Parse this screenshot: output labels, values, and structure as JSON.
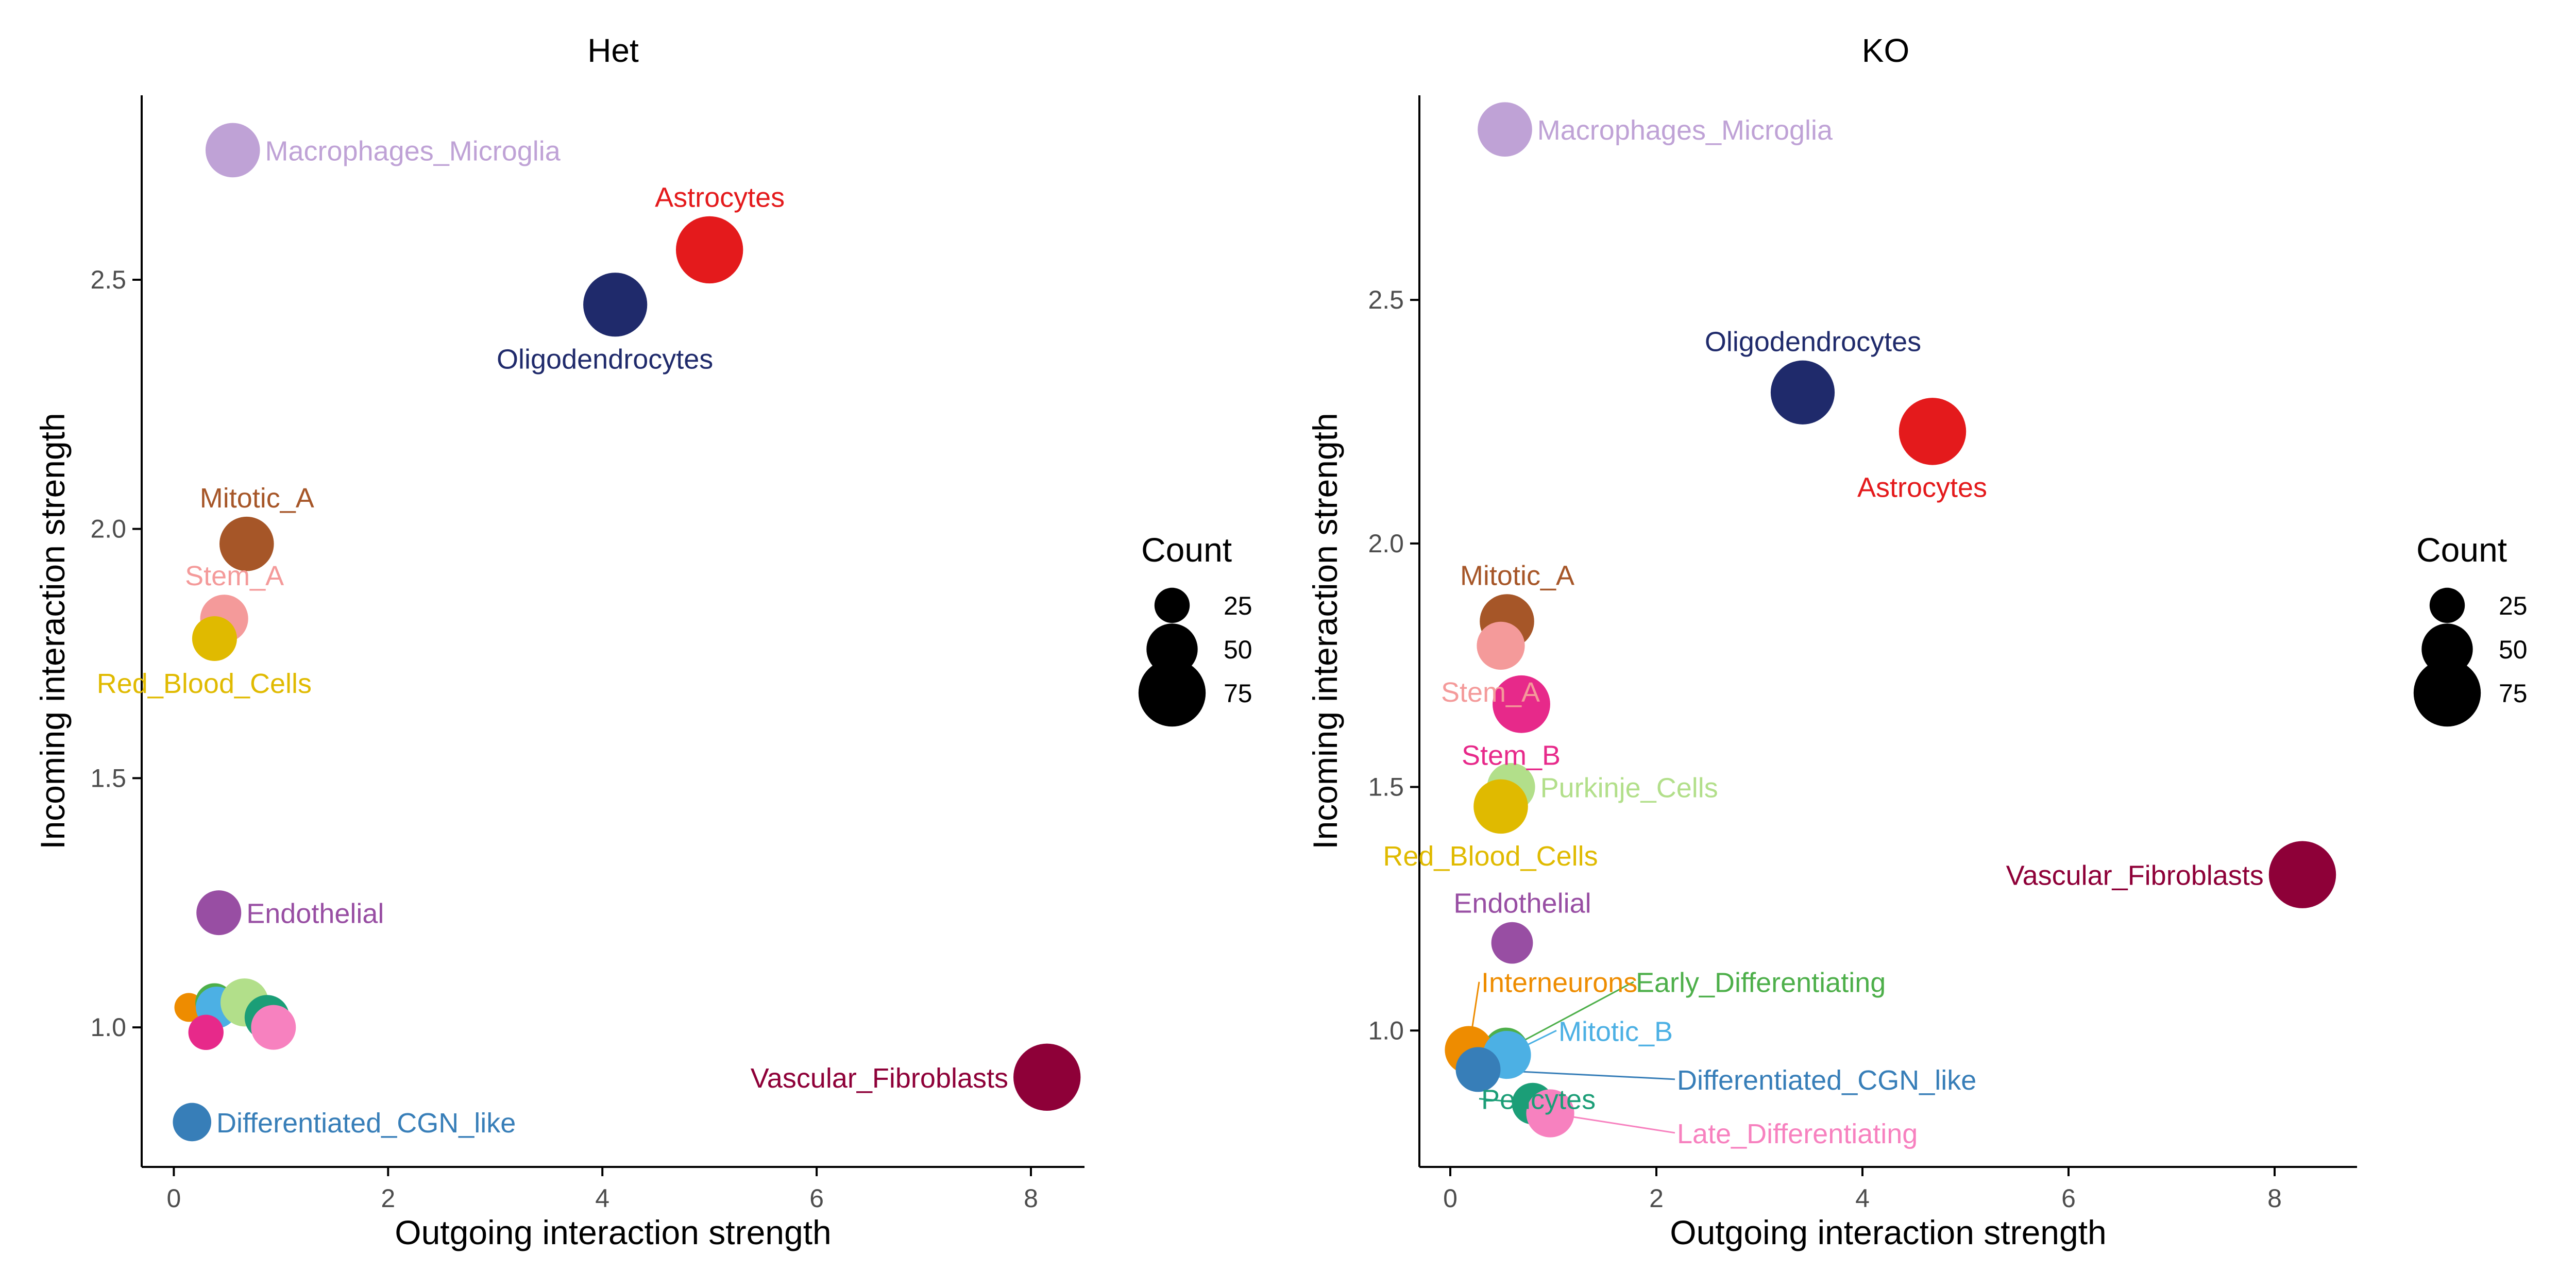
{
  "legend": {
    "title": "Count",
    "entries": [
      {
        "label": "25",
        "value": 25
      },
      {
        "label": "50",
        "value": 50
      },
      {
        "label": "75",
        "value": 75
      }
    ]
  },
  "chart_data": [
    {
      "type": "scatter",
      "title": "Het",
      "xlabel": "Outgoing interaction strength",
      "ylabel": "Incoming interaction strength",
      "xlim": [
        -0.3,
        8.5
      ],
      "ylim": [
        0.72,
        2.87
      ],
      "xticks": [
        0,
        2,
        4,
        6,
        8
      ],
      "yticks": [
        1.0,
        1.5,
        2.0,
        2.5
      ],
      "ytick_labels": [
        "1.0",
        "1.5",
        "2.0",
        "2.5"
      ],
      "points": [
        {
          "name": "Macrophages_Microglia",
          "x": 0.55,
          "y": 2.76,
          "count": 55,
          "color": "#BFA2D6",
          "label": "Macrophages_Microglia",
          "anchor": "right"
        },
        {
          "name": "Astrocytes",
          "x": 5.0,
          "y": 2.56,
          "count": 75,
          "color": "#E41A1C",
          "label": "Astrocytes",
          "anchor": "above"
        },
        {
          "name": "Oligodendrocytes",
          "x": 4.12,
          "y": 2.45,
          "count": 70,
          "color": "#1F2A6B",
          "label": "Oligodendrocytes",
          "anchor": "below"
        },
        {
          "name": "Mitotic_A",
          "x": 0.68,
          "y": 1.97,
          "count": 55,
          "color": "#A65628",
          "label": "Mitotic_A",
          "anchor": "above"
        },
        {
          "name": "Stem_A",
          "x": 0.47,
          "y": 1.82,
          "count": 45,
          "color": "#F49A9A",
          "label": "Stem_A",
          "anchor": "above"
        },
        {
          "name": "Red_Blood_Cells",
          "x": 0.38,
          "y": 1.78,
          "count": 40,
          "color": "#E0BA00",
          "label": "Red_Blood_Cells",
          "anchor": "below"
        },
        {
          "name": "Endothelial",
          "x": 0.42,
          "y": 1.23,
          "count": 40,
          "color": "#984EA3",
          "label": "Endothelial",
          "anchor": "right"
        },
        {
          "name": "Interneurons",
          "x": 0.14,
          "y": 1.04,
          "count": 15,
          "color": "#EE8C00",
          "label": "",
          "anchor": "none"
        },
        {
          "name": "Early_Differentiating",
          "x": 0.38,
          "y": 1.05,
          "count": 30,
          "color": "#4DAF4A",
          "label": "",
          "anchor": "none"
        },
        {
          "name": "Mitotic_B",
          "x": 0.4,
          "y": 1.04,
          "count": 35,
          "color": "#4CB0E4",
          "label": "",
          "anchor": "none"
        },
        {
          "name": "Purkinje_Cells",
          "x": 0.66,
          "y": 1.05,
          "count": 45,
          "color": "#B2DF8A",
          "label": "",
          "anchor": "none"
        },
        {
          "name": "Pericytes",
          "x": 0.87,
          "y": 1.02,
          "count": 40,
          "color": "#1B9E77",
          "label": "",
          "anchor": "none"
        },
        {
          "name": "Stem_B",
          "x": 0.3,
          "y": 0.99,
          "count": 25,
          "color": "#E7298A",
          "label": "",
          "anchor": "none"
        },
        {
          "name": "Late_Differentiating",
          "x": 0.93,
          "y": 1.0,
          "count": 40,
          "color": "#F781BF",
          "label": "",
          "anchor": "none"
        },
        {
          "name": "Differentiated_CGN_like",
          "x": 0.17,
          "y": 0.81,
          "count": 30,
          "color": "#377EB8",
          "label": "Differentiated_CGN_like",
          "anchor": "right"
        },
        {
          "name": "Vascular_Fibroblasts",
          "x": 8.15,
          "y": 0.9,
          "count": 75,
          "color": "#8E0038",
          "label": "Vascular_Fibroblasts",
          "anchor": "left"
        }
      ]
    },
    {
      "type": "scatter",
      "title": "KO",
      "xlabel": "Outgoing interaction strength",
      "ylabel": "Incoming interaction strength",
      "xlim": [
        -0.3,
        8.8
      ],
      "ylim": [
        0.72,
        2.92
      ],
      "xticks": [
        0,
        2,
        4,
        6,
        8
      ],
      "yticks": [
        1.0,
        1.5,
        2.0,
        2.5
      ],
      "ytick_labels": [
        "1.0",
        "1.5",
        "2.0",
        "2.5"
      ],
      "points": [
        {
          "name": "Macrophages_Microglia",
          "x": 0.53,
          "y": 2.85,
          "count": 55,
          "color": "#BFA2D6",
          "label": "Macrophages_Microglia",
          "anchor": "right"
        },
        {
          "name": "Oligodendrocytes",
          "x": 3.42,
          "y": 2.31,
          "count": 70,
          "color": "#1F2A6B",
          "label": "Oligodendrocytes",
          "anchor": "above"
        },
        {
          "name": "Astrocytes",
          "x": 4.68,
          "y": 2.23,
          "count": 75,
          "color": "#E41A1C",
          "label": "Astrocytes",
          "anchor": "below"
        },
        {
          "name": "Mitotic_A",
          "x": 0.55,
          "y": 1.84,
          "count": 55,
          "color": "#A65628",
          "label": "Mitotic_A",
          "anchor": "above"
        },
        {
          "name": "Stem_A",
          "x": 0.49,
          "y": 1.79,
          "count": 45,
          "color": "#F49A9A",
          "label": "Stem_A",
          "anchor": "below"
        },
        {
          "name": "Stem_B",
          "x": 0.69,
          "y": 1.67,
          "count": 60,
          "color": "#E7298A",
          "label": "Stem_B",
          "anchor": "below"
        },
        {
          "name": "Purkinje_Cells",
          "x": 0.59,
          "y": 1.5,
          "count": 45,
          "color": "#B2DF8A",
          "label": "Purkinje_Cells",
          "anchor": "right"
        },
        {
          "name": "Red_Blood_Cells",
          "x": 0.49,
          "y": 1.46,
          "count": 55,
          "color": "#E0BA00",
          "label": "Red_Blood_Cells",
          "anchor": "below"
        },
        {
          "name": "Vascular_Fibroblasts",
          "x": 8.27,
          "y": 1.32,
          "count": 75,
          "color": "#8E0038",
          "label": "Vascular_Fibroblasts",
          "anchor": "left"
        },
        {
          "name": "Endothelial",
          "x": 0.6,
          "y": 1.18,
          "count": 35,
          "color": "#984EA3",
          "label": "Endothelial",
          "anchor": "above"
        },
        {
          "name": "Early_Differentiating",
          "x": 0.54,
          "y": 0.96,
          "count": 40,
          "color": "#4DAF4A",
          "label": "Early_Differentiating",
          "anchor": "leader",
          "label_x": 1.8,
          "label_y": 1.1
        },
        {
          "name": "Interneurons",
          "x": 0.18,
          "y": 0.96,
          "count": 45,
          "color": "#EE8C00",
          "label": "Interneurons",
          "anchor": "leader",
          "label_x": 0.3,
          "label_y": 1.1
        },
        {
          "name": "Mitotic_B",
          "x": 0.55,
          "y": 0.95,
          "count": 45,
          "color": "#4CB0E4",
          "label": "Mitotic_B",
          "anchor": "leader",
          "label_x": 1.05,
          "label_y": 1.0
        },
        {
          "name": "Differentiated_CGN_like",
          "x": 0.27,
          "y": 0.92,
          "count": 40,
          "color": "#377EB8",
          "label": "Differentiated_CGN_like",
          "anchor": "leader",
          "label_x": 2.2,
          "label_y": 0.9
        },
        {
          "name": "Pericytes",
          "x": 0.8,
          "y": 0.85,
          "count": 35,
          "color": "#1B9E77",
          "label": "Pericytes",
          "anchor": "leader",
          "label_x": 0.3,
          "label_y": 0.86
        },
        {
          "name": "Late_Differentiating",
          "x": 0.97,
          "y": 0.83,
          "count": 45,
          "color": "#F781BF",
          "label": "Late_Differentiating",
          "anchor": "leader",
          "label_x": 2.2,
          "label_y": 0.79
        }
      ]
    }
  ]
}
